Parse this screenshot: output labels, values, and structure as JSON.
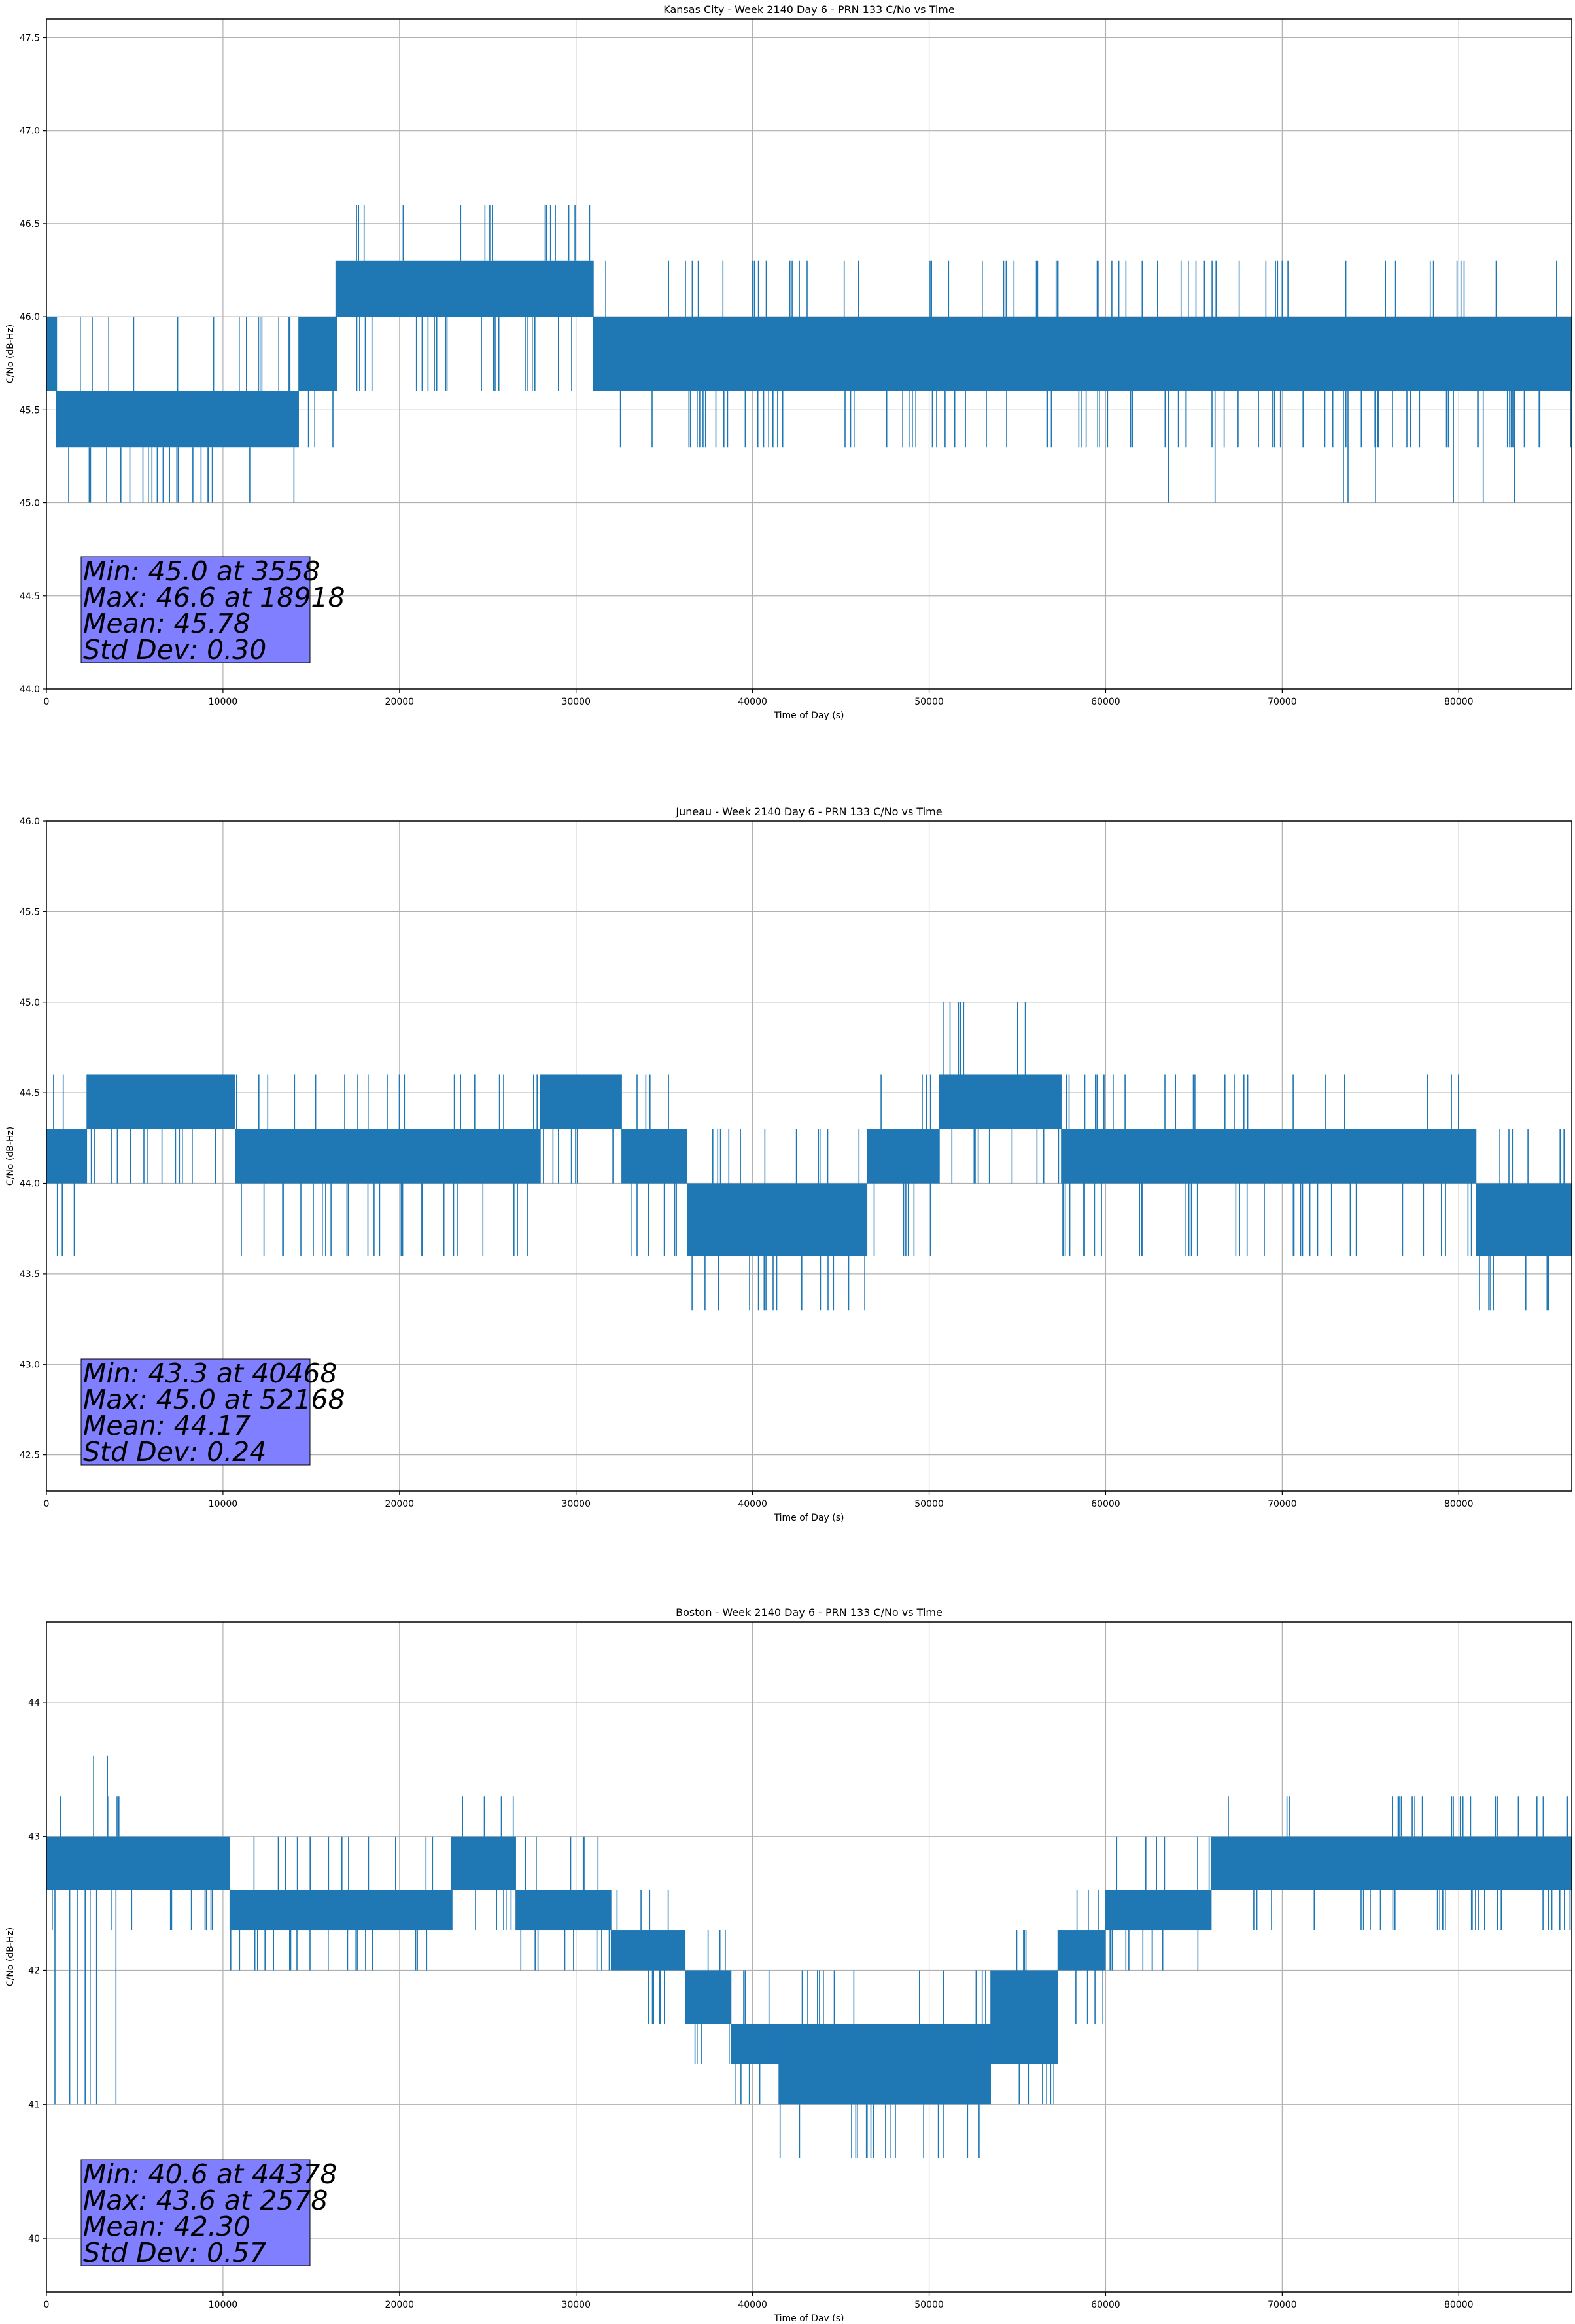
{
  "chart_data": [
    {
      "type": "line",
      "title": "Kansas City - Week 2140 Day 6 - PRN 133 C/No vs Time",
      "xlabel": "Time of Day (s)",
      "ylabel": "C/No (dB-Hz)",
      "xlim": [
        0,
        86400
      ],
      "ylim": [
        44.0,
        47.6
      ],
      "xticks": [
        0,
        10000,
        20000,
        30000,
        40000,
        50000,
        60000,
        70000,
        80000
      ],
      "xtick_labels": [
        "0",
        "10000",
        "20000",
        "30000",
        "40000",
        "50000",
        "60000",
        "70000",
        "80000"
      ],
      "yticks": [
        44.0,
        44.5,
        45.0,
        45.5,
        46.0,
        46.5,
        47.0,
        47.5
      ],
      "ytick_labels": [
        "44.0",
        "44.5",
        "45.0",
        "45.5",
        "46.0",
        "46.5",
        "47.0",
        "47.5"
      ],
      "grid": true,
      "color": "#1f77b4",
      "series": [
        {
          "segments": [
            {
              "x": [
                0,
                600
              ],
              "band": [
                45.6,
                46.0
              ],
              "spikes_low": [
                45.3
              ],
              "spikes_high": []
            },
            {
              "x": [
                600,
                14300
              ],
              "band": [
                45.3,
                45.6
              ],
              "spikes_low": [
                45.0
              ],
              "spikes_high": [
                46.0
              ]
            },
            {
              "x": [
                14300,
                16400
              ],
              "band": [
                45.6,
                46.0
              ],
              "spikes_low": [
                45.3
              ],
              "spikes_high": []
            },
            {
              "x": [
                16400,
                31000
              ],
              "band": [
                46.0,
                46.3
              ],
              "spikes_low": [
                45.6
              ],
              "spikes_high": [
                46.6
              ]
            },
            {
              "x": [
                31000,
                60000
              ],
              "band": [
                45.6,
                46.0
              ],
              "spikes_low": [
                45.3
              ],
              "spikes_high": [
                46.3
              ]
            },
            {
              "x": [
                60000,
                86400
              ],
              "band": [
                45.6,
                46.0
              ],
              "spikes_low": [
                45.3,
                45.0
              ],
              "spikes_high": [
                46.3
              ]
            }
          ]
        }
      ],
      "stats": {
        "min": "Min: 45.0 at 3558",
        "max": "Max: 46.6 at 18918",
        "mean": "Mean: 45.78",
        "std": "Std Dev: 0.30"
      },
      "stats_box_color": "#7f7fff",
      "stats_position": "lower-left"
    },
    {
      "type": "line",
      "title": "Juneau - Week 2140 Day 6 - PRN 133 C/No vs Time",
      "xlabel": "Time of Day (s)",
      "ylabel": "C/No (dB-Hz)",
      "xlim": [
        0,
        86400
      ],
      "ylim": [
        42.3,
        46.0
      ],
      "xticks": [
        0,
        10000,
        20000,
        30000,
        40000,
        50000,
        60000,
        70000,
        80000
      ],
      "xtick_labels": [
        "0",
        "10000",
        "20000",
        "30000",
        "40000",
        "50000",
        "60000",
        "70000",
        "80000"
      ],
      "yticks": [
        42.5,
        43.0,
        43.5,
        44.0,
        44.5,
        45.0,
        45.5,
        46.0
      ],
      "ytick_labels": [
        "42.5",
        "43.0",
        "43.5",
        "44.0",
        "44.5",
        "45.0",
        "45.5",
        "46.0"
      ],
      "grid": true,
      "color": "#1f77b4",
      "series": [
        {
          "segments": [
            {
              "x": [
                0,
                2300
              ],
              "band": [
                44.0,
                44.3
              ],
              "spikes_low": [
                43.6
              ],
              "spikes_high": [
                44.6
              ]
            },
            {
              "x": [
                2300,
                10700
              ],
              "band": [
                44.3,
                44.6
              ],
              "spikes_low": [
                44.0
              ],
              "spikes_high": []
            },
            {
              "x": [
                10700,
                28000
              ],
              "band": [
                44.0,
                44.3
              ],
              "spikes_low": [
                43.6
              ],
              "spikes_high": [
                44.6
              ]
            },
            {
              "x": [
                28000,
                32600
              ],
              "band": [
                44.3,
                44.6
              ],
              "spikes_low": [
                44.0
              ],
              "spikes_high": []
            },
            {
              "x": [
                32600,
                36300
              ],
              "band": [
                44.0,
                44.3
              ],
              "spikes_low": [
                43.6
              ],
              "spikes_high": [
                44.6
              ]
            },
            {
              "x": [
                36300,
                46500
              ],
              "band": [
                43.6,
                44.0
              ],
              "spikes_low": [
                43.3
              ],
              "spikes_high": [
                44.3
              ]
            },
            {
              "x": [
                46500,
                50600
              ],
              "band": [
                44.0,
                44.3
              ],
              "spikes_low": [
                43.6
              ],
              "spikes_high": [
                44.6
              ]
            },
            {
              "x": [
                50600,
                57500
              ],
              "band": [
                44.3,
                44.6
              ],
              "spikes_low": [
                44.0
              ],
              "spikes_high": [
                45.0
              ]
            },
            {
              "x": [
                57500,
                81000
              ],
              "band": [
                44.0,
                44.3
              ],
              "spikes_low": [
                43.6
              ],
              "spikes_high": [
                44.6
              ]
            },
            {
              "x": [
                81000,
                86400
              ],
              "band": [
                43.6,
                44.0
              ],
              "spikes_low": [
                43.3
              ],
              "spikes_high": [
                44.3
              ]
            }
          ]
        }
      ],
      "stats": {
        "min": "Min: 43.3 at 40468",
        "max": "Max: 45.0 at 52168",
        "mean": "Mean: 44.17",
        "std": "Std Dev: 0.24"
      },
      "stats_box_color": "#7f7fff",
      "stats_position": "lower-left"
    },
    {
      "type": "line",
      "title": "Boston - Week 2140 Day 6 - PRN 133 C/No vs Time",
      "xlabel": "Time of Day (s)",
      "ylabel": "C/No (dB-Hz)",
      "xlim": [
        0,
        86400
      ],
      "ylim": [
        39.6,
        44.6
      ],
      "xticks": [
        0,
        10000,
        20000,
        30000,
        40000,
        50000,
        60000,
        70000,
        80000
      ],
      "xtick_labels": [
        "0",
        "10000",
        "20000",
        "30000",
        "40000",
        "50000",
        "60000",
        "70000",
        "80000"
      ],
      "yticks": [
        40,
        41,
        42,
        43,
        44
      ],
      "ytick_labels": [
        "40",
        "41",
        "42",
        "43",
        "44"
      ],
      "grid": true,
      "color": "#1f77b4",
      "series": [
        {
          "segments": [
            {
              "x": [
                0,
                4800
              ],
              "band": [
                42.6,
                43.0
              ],
              "spikes_low": [
                41.0,
                42.3
              ],
              "spikes_high": [
                43.3,
                43.6
              ]
            },
            {
              "x": [
                4800,
                10400
              ],
              "band": [
                42.6,
                43.0
              ],
              "spikes_low": [
                42.3
              ],
              "spikes_high": []
            },
            {
              "x": [
                10400,
                23000
              ],
              "band": [
                42.3,
                42.6
              ],
              "spikes_low": [
                42.0
              ],
              "spikes_high": [
                43.0
              ]
            },
            {
              "x": [
                23000,
                26600
              ],
              "band": [
                42.6,
                43.0
              ],
              "spikes_low": [
                42.3
              ],
              "spikes_high": [
                43.3
              ]
            },
            {
              "x": [
                26600,
                32000
              ],
              "band": [
                42.3,
                42.6
              ],
              "spikes_low": [
                42.0
              ],
              "spikes_high": [
                43.0
              ]
            },
            {
              "x": [
                32000,
                36200
              ],
              "band": [
                42.0,
                42.3
              ],
              "spikes_low": [
                41.6
              ],
              "spikes_high": [
                42.6
              ]
            },
            {
              "x": [
                36200,
                38800
              ],
              "band": [
                41.6,
                42.0
              ],
              "spikes_low": [
                41.3
              ],
              "spikes_high": [
                42.3
              ]
            },
            {
              "x": [
                38800,
                41500
              ],
              "band": [
                41.3,
                41.6
              ],
              "spikes_low": [
                41.0
              ],
              "spikes_high": [
                42.0
              ]
            },
            {
              "x": [
                41500,
                53500
              ],
              "band": [
                41.0,
                41.6
              ],
              "spikes_low": [
                40.6
              ],
              "spikes_high": [
                42.0
              ]
            },
            {
              "x": [
                53500,
                57300
              ],
              "band": [
                41.3,
                42.0
              ],
              "spikes_low": [
                41.0
              ],
              "spikes_high": [
                42.3
              ]
            },
            {
              "x": [
                57300,
                60000
              ],
              "band": [
                42.0,
                42.3
              ],
              "spikes_low": [
                41.6
              ],
              "spikes_high": [
                42.6
              ]
            },
            {
              "x": [
                60000,
                66000
              ],
              "band": [
                42.3,
                42.6
              ],
              "spikes_low": [
                42.0
              ],
              "spikes_high": [
                43.0
              ]
            },
            {
              "x": [
                66000,
                86400
              ],
              "band": [
                42.6,
                43.0
              ],
              "spikes_low": [
                42.3
              ],
              "spikes_high": [
                43.3
              ]
            }
          ]
        }
      ],
      "stats": {
        "min": "Min: 40.6 at 44378",
        "max": "Max: 43.6 at 2578",
        "mean": "Mean: 42.30",
        "std": "Std Dev: 0.57"
      },
      "stats_box_color": "#7f7fff",
      "stats_position": "lower-left"
    }
  ]
}
